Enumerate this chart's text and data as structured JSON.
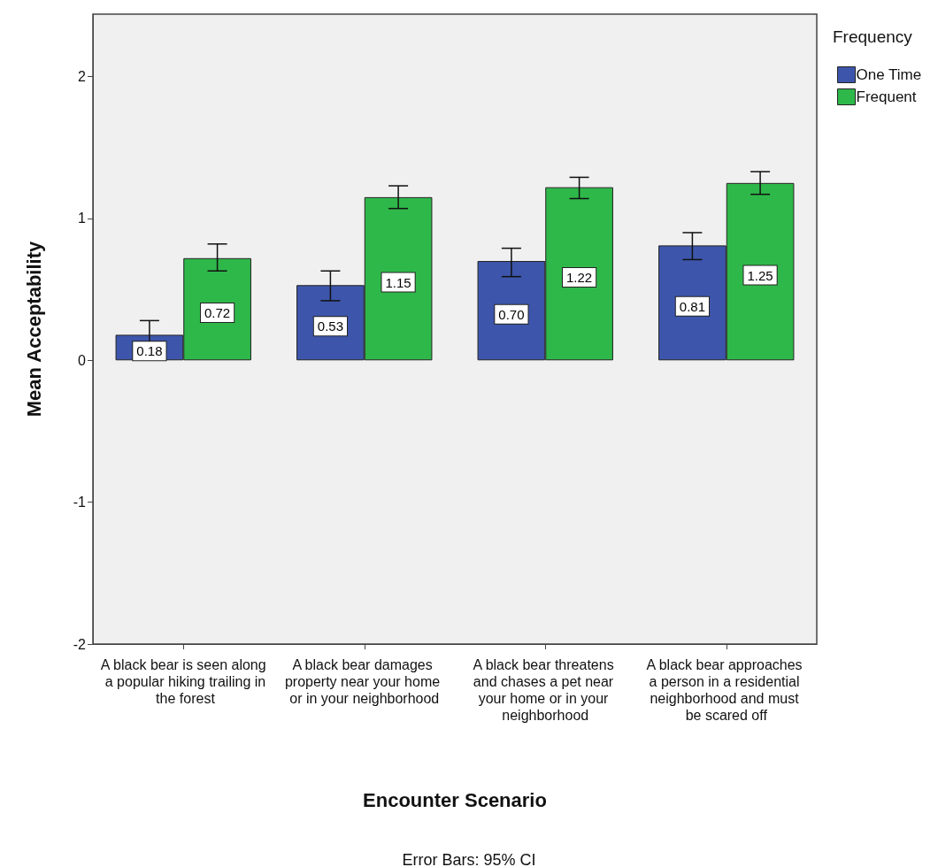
{
  "chart_data": {
    "type": "bar",
    "xlabel": "Encounter Scenario",
    "ylabel": "Mean Acceptability",
    "legend_title": "Frequency",
    "categories": [
      "A black bear is seen along a popular hiking trailing in the forest",
      "A black bear damages property near your home or in your neighborhood",
      "A black bear threatens and chases a pet near your home or in your neighborhood",
      "A black bear approaches a person in a residential neighborhood and must be scared off"
    ],
    "series": [
      {
        "name": "One Time",
        "color": "#3d56ab",
        "values": [
          0.18,
          0.53,
          0.7,
          0.81
        ],
        "value_labels": [
          "0.18",
          "0.53",
          "0.70",
          "0.81"
        ],
        "errors": [
          [
            0.08,
            0.28
          ],
          [
            0.42,
            0.63
          ],
          [
            0.59,
            0.79
          ],
          [
            0.71,
            0.9
          ]
        ]
      },
      {
        "name": "Frequent",
        "color": "#2fb84a",
        "values": [
          0.72,
          1.15,
          1.22,
          1.25
        ],
        "value_labels": [
          "0.72",
          "1.15",
          "1.22",
          "1.25"
        ],
        "errors": [
          [
            0.63,
            0.82
          ],
          [
            1.07,
            1.23
          ],
          [
            1.14,
            1.29
          ],
          [
            1.17,
            1.33
          ]
        ]
      }
    ],
    "ylim": [
      -2,
      2.44
    ],
    "yticks": [
      -2,
      -1,
      0,
      1,
      2
    ],
    "grid": false,
    "legend": "top right",
    "annotations": [
      "Error Bars: 95% CI"
    ]
  }
}
